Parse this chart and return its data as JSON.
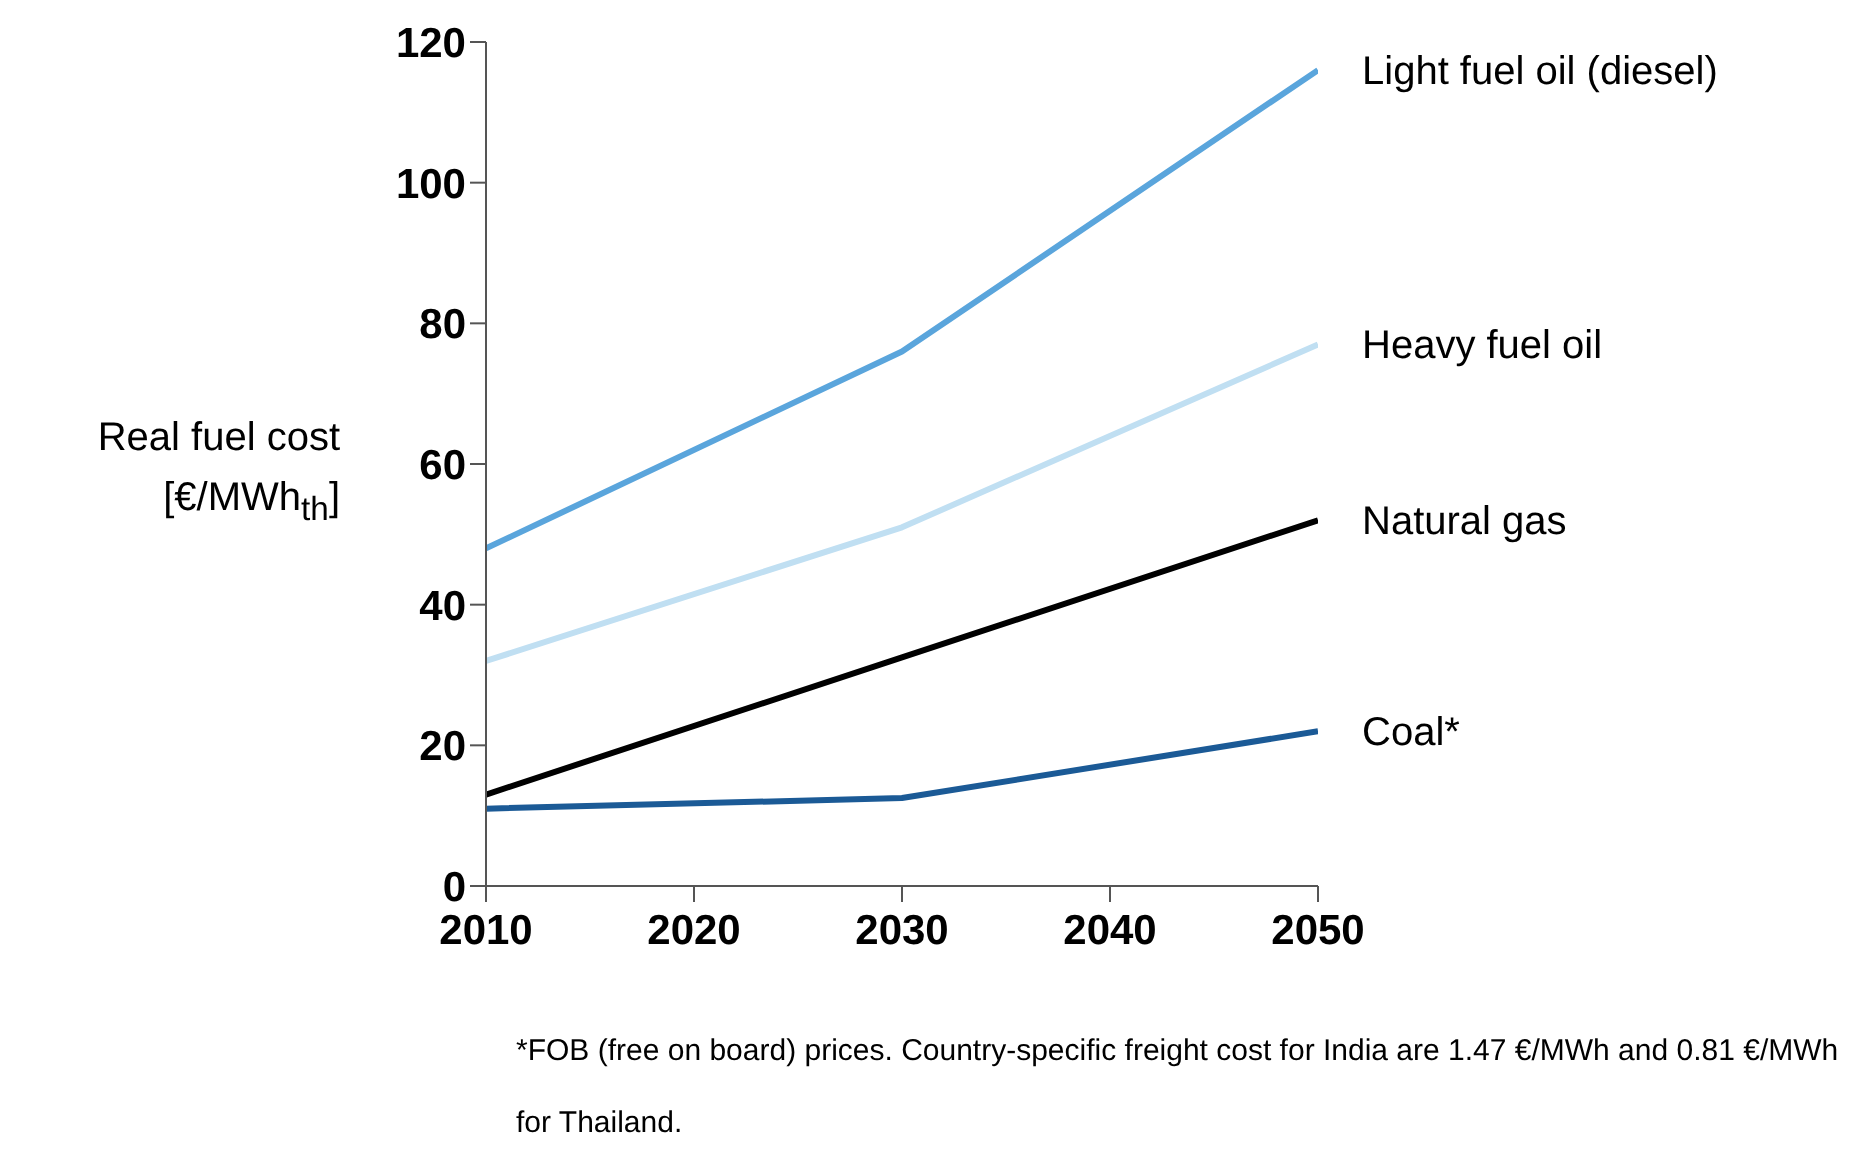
{
  "chart_data": {
    "type": "line",
    "ylabel": "Real fuel cost [€/MWh$_{th}$]",
    "x": [
      2010,
      2030,
      2050
    ],
    "series": [
      {
        "name": "Light fuel oil (diesel)",
        "color": "#5aa5dc",
        "values": [
          48,
          76,
          116
        ]
      },
      {
        "name": "Heavy fuel oil",
        "color": "#c0dff2",
        "values": [
          32,
          51,
          77
        ]
      },
      {
        "name": "Natural gas",
        "color": "#000000",
        "values": [
          13,
          32.5,
          52
        ]
      },
      {
        "name": "Coal*",
        "color": "#1b5a96",
        "values": [
          11,
          12.5,
          22
        ]
      }
    ],
    "xlim": [
      2010,
      2050
    ],
    "xticks": [
      2010,
      2020,
      2030,
      2040,
      2050
    ],
    "ylim": [
      0,
      120
    ],
    "yticks": [
      0,
      20,
      40,
      60,
      80,
      100,
      120
    ],
    "grid": false,
    "legend": false,
    "marker": "none",
    "line_style": "solid",
    "annotations": [
      "*FOB (free on board) prices. Country-specific freight cost for India are 1.47 €/MWh and 0.81 €/MWh for Thailand."
    ]
  }
}
